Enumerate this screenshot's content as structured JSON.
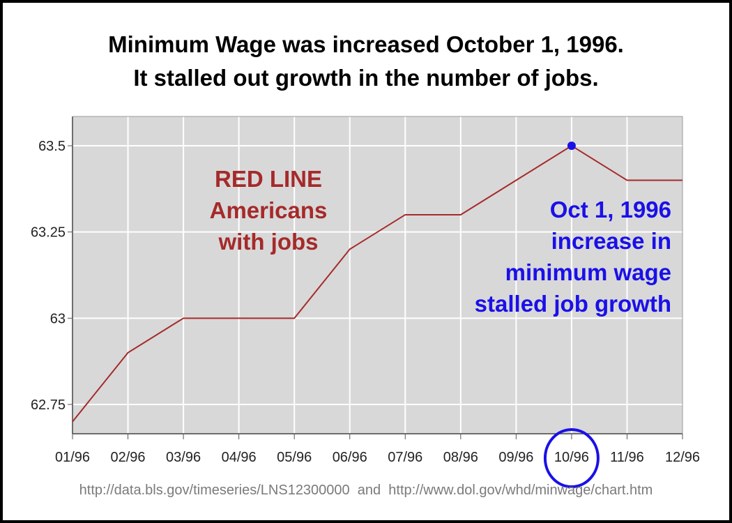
{
  "title_line1": "Minimum Wage was increased October 1, 1996.",
  "title_line2": "It stalled out growth in the number of jobs.",
  "source_text": "http://data.bls.gov/timeseries/LNS12300000  and  http://www.dol.gov/whd/minwage/chart.htm",
  "colors": {
    "series": "#a52a2a",
    "highlight": "#1a10e8",
    "plot_bg": "#d8d8d8",
    "grid": "#ffffff"
  },
  "annotations": {
    "red": [
      "RED LINE",
      "Americans",
      "with jobs"
    ],
    "blue": [
      "Oct 1, 1996",
      "increase in",
      "minimum wage",
      "stalled job growth"
    ]
  },
  "chart_data": {
    "type": "line",
    "categories": [
      "01/96",
      "02/96",
      "03/96",
      "04/96",
      "05/96",
      "06/96",
      "07/96",
      "08/96",
      "09/96",
      "10/96",
      "11/96",
      "12/96"
    ],
    "series": [
      {
        "values": [
          62.7,
          62.9,
          63.0,
          63.0,
          63.0,
          63.2,
          63.3,
          63.3,
          63.4,
          63.5,
          63.4,
          63.4
        ]
      }
    ],
    "yticks": [
      62.75,
      63,
      63.25,
      63.5
    ],
    "ytick_labels": [
      "62.75",
      "63",
      "63.25",
      "63.5"
    ],
    "ylim": [
      62.665,
      63.585
    ],
    "highlight_point": "10/96",
    "grid": true
  }
}
